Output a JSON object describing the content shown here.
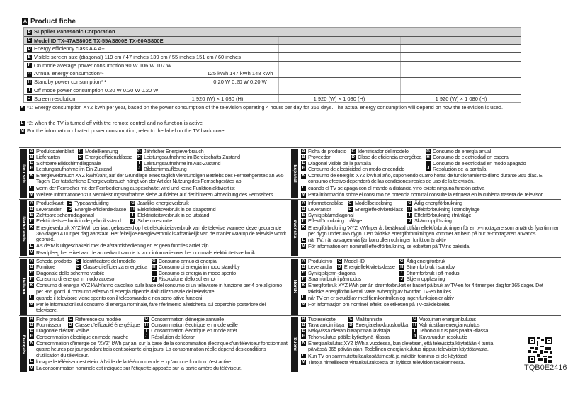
{
  "fiche": {
    "title": "Product fiche",
    "rows": [
      {
        "letter": "B",
        "label": "Supplier Panasonic Corporation"
      },
      {
        "letter": "C",
        "label": "Model ID TX-47AS800E TX-55AS800E TX-60AS800E"
      },
      {
        "letter": "D",
        "label": "Energy efficiency class A A A+"
      },
      {
        "letter": "E",
        "label": "Visible screen size (diagonal) 119 cm / 47 inches 139 cm / 55 inches 151 cm / 60 inches"
      },
      {
        "letter": "F",
        "label": "On mode average power consumption 90 W 106 W 107 W"
      },
      {
        "letter": "G",
        "label": "Annual energy consumption*¹",
        "value": "125 kWh 147 kWh 148 kWh"
      },
      {
        "letter": "H",
        "label": "Standby power consumption* ²",
        "value": "0.20 W 0.20 W 0.20 W"
      },
      {
        "letter": "I",
        "label": "Off mode power consumption 0.20 W 0.20 W 0.20 W"
      },
      {
        "letter": "J",
        "label": "Screen resolution",
        "values": [
          "1 920 (W) × 1 080 (H)",
          "1 920 (W) × 1 080 (H)",
          "1 920 (W) × 1 080 (H)"
        ]
      }
    ],
    "notes": [
      {
        "letter": "K",
        "text": "*1: Energy consumption XYZ kWh per year, based on the power consumption of the television operating 4 hours per day for 365 days. The actual energy consumption will depend on how the television is used."
      },
      {
        "letter": "L",
        "text": "*2: when the TV is turned off with the remote control and no function is active"
      },
      {
        "letter": "M",
        "text": "For the information of rated power consumption, refer to the label on the TV back cover."
      }
    ]
  },
  "languages": [
    {
      "name": "Deutsch",
      "A": "Produktdatenblatt",
      "B": "Lieferanten",
      "C": "Modellkennung",
      "D": "Energieeffizienzklasse",
      "E": "Sichtbare Bildschirmdiagonale",
      "F": "Leistungsaufnahme im Ein-Zustand",
      "G": "Jährlicher Energieverbrauch",
      "H": "Leistungsaufnahme im Bereitschafts-Zustand",
      "I": "Leistungsaufnahme im Aus-Zustand",
      "J": "Bildschirmauflösung",
      "K": "Energieverbrauch XYZ kWh/Jahr, auf der Grundlage eines täglich vierstündigen Betriebs des Fernsehgerätes an 365 Tagen. Der tatsächliche Energieverbrauch hängt von der Art der Nutzung des Fernsehgerätes ab.",
      "L": "wenn der Fernseher mit der Fernbedienung ausgeschaltet wird und keine Funktion aktiviert ist",
      "M": "Weitere Informationen zur Nennleistungsaufnahme siehe Aufkleber auf der hinteren Abdeckung des Fernsehers."
    },
    {
      "name": "Nederlands",
      "A": "Productkaart",
      "B": "Leverancier",
      "C": "Typeaanduiding",
      "D": "Energie-efficiëntieklasse",
      "E": "Zichtbare schermdiagonaal",
      "F": "Elektriciteitsverbruik in de gebruiksstand",
      "G": "Jaarlijks energieverbruik",
      "H": "Elektriciteitsverbruik in de slaapstand",
      "I": "Elektriciteitsverbruik in de uitstand",
      "J": "Schermresolutie",
      "K": "Energieverbruik XYZ kWh per jaar, gebaseerd op het elektriciteitsverbruik van de televisie wanneer deze gedurende 365 dagen 4 uur per dag aanstaat. Het feitelijke energieverbruik is afhankelijk van de manier waarop de televisie wordt gebruikt.",
      "L": "Als de tv is uitgeschakeld met de afstandsbediening en er geen functies actief zijn",
      "M": "Raadpleeg het etiket aan de achterkant van de tv voor informatie over het nominale elektriciteitsverbruik."
    },
    {
      "name": "Italiano",
      "A": "Scheda prodotto",
      "B": "Fornitore",
      "C": "Identificatore del modello",
      "D": "Classe di efficienza energetica",
      "E": "Diagonale dello schermo visibile",
      "F": "Consumo di energia in modo acceso",
      "G": "Consumo annuo di energia",
      "H": "Consumo di energia in modo stand-by",
      "I": "Consumo di energia in modo spento",
      "J": "Risoluzione dello schermo",
      "K": "Consumo di energia XYZ kWh/anno calcolato sulla base del consumo di un televisore in funzione per 4 ore al giorno per 365 giorni. Il consumo effettivo di energia dipende dall'utilizzo reale del televisore.",
      "L": "quando il televisore viene spento con il telecomando e non sono attive funzioni",
      "M": "Per le informazioni sul consumo di energia nominale, fare riferimento all'etichetta sul coperchio posteriore del televisore."
    },
    {
      "name": "Français",
      "A": "Fiche produit",
      "B": "Fournisseur",
      "C": "Référence du modèle",
      "D": "Classe d'efficacité énergétique",
      "E": "Diagonale d'écran visible",
      "F": "Consommation électrique en mode marche",
      "G": "Consommation d'énergie annuelle",
      "H": "Consommation électrique en mode veille",
      "I": "Consommation électrique en mode arrêt",
      "J": "Résolution de l'écran",
      "K": "Consommation d'énergie de \"XYZ\" kWh par an, sur la base de la consommation électrique d'un téléviseur fonctionnant quatre heures par jour pendant trois cent soixante-cinq jours. La consommation réelle dépend des conditions d'utilisation du téléviseur.",
      "L": "lorsque le téléviseur est éteint à l'aide de la télécommande et qu'aucune fonction n'est active.",
      "M": "La consommation nominale est indiquée sur l'étiquette apposée sur la partie arrière du téléviseur."
    },
    {
      "name": "Español",
      "A": "Ficha de producto",
      "B": "Proveedor",
      "C": "Identificador del modelo",
      "D": "Clase de eficiencia energética",
      "E": "Diagonal visible de la pantalla",
      "F": "Consumo de electricidad en modo encendido",
      "G": "Consumo de energía anual",
      "H": "Consumo de electricidad en espera",
      "I": "Consumo de electricidad en modo apagado",
      "J": "Resolución de la pantalla",
      "K": "Consumo de energía: XYZ kWh al año, suponiendo cuatro horas de funcionamiento diario durante 365 días. El consumo efectivo dependerá de las condiciones reales de uso de la televisión.",
      "L": "cuando el TV se apaga con el mando a distancia y no existe ninguna función activa",
      "M": "Para información sobre el consumo de potencia nominal consulte la etiqueta en la cubierta trasera del televisor."
    },
    {
      "name": "Svenska",
      "A": "Informationsblad",
      "B": "Leverantör",
      "C": "Modellbeteckning",
      "D": "Energieffektivitetsklass",
      "E": "Synlig skärmdiagonal",
      "F": "Effektförbrukning i påläge",
      "G": "Årlig energiförbrukning",
      "H": "Effektförbrukning i standbyläge",
      "I": "Effektförbrukning i frånläge",
      "J": "Skärmupplösning",
      "K": "Energiförbrukning 'XYZ' kWh per år, beräknad utifrån effektförbrukningen för en tv-mottagare som används fyra timmar per dygn under 365 dygn. Den faktiska energiförbrukningen kommer att bero på hur tv-mottagaren används.",
      "L": "när TV:n är avslagen via fjärrkontrollen och ingen funktion är aktiv",
      "M": "För information om nominell effektförbrukning, se etiketten på TV:ns baksida."
    },
    {
      "name": "Norsk",
      "A": "Produktinfo",
      "B": "Leverandør",
      "C": "Modell-ID",
      "D": "Energieffektivitetsklasse",
      "E": "Synlig skjerm-diagonal",
      "F": "Strømforbruk i på-modus",
      "G": "Årlig energiforbruk",
      "H": "Strømforbruk i standby",
      "I": "Strømforbruk i off-modus",
      "J": "Skjermoppløsning",
      "K": "Energiforbruk XYZ kWh per år, strømforbruket er basert på bruk av TV-en for 4 timer per dag for 365 dager. Det faktiske energiforbruket vil være avhengig av hvordan TV-en brukes.",
      "L": "når TV-en er skrudd av med fjernkontrollen og ingen funksjon er aktiv",
      "M": "For informasjon om nominell effekt, se etiketten på TV-bakdekselet."
    },
    {
      "name": "Suomi",
      "A": "Tuoteseloste",
      "B": "Tavarantoimittaja",
      "C": "Mallitunniste",
      "D": "Energiatehokkuusluokka",
      "E": "Näkyvissä olevan kuvapinnan lävistäjä",
      "F": "Tehonkulutus päälle kytkettynä -tilassa",
      "G": "Vuotuinen energiankulutus",
      "H": "Valmiustilan energiankulutus",
      "I": "Tehonkulutus pois päältä -tilassa",
      "J": "Kuvaruudun resoluutio",
      "K": "Energiankulutus XYZ kWh:a vuodessa, kun oletetaan, että televisiota käytetään 4 tuntia päivässä 365 päivän ajan. Todellinen energiankulutus riippuu television käyttötavasta.",
      "L": "Kun TV on sammutettu kaukosäätimestä ja mikään toiminto ei ole käytössä",
      "M": "Tietoja nimellisestä virrankulutuksesta on kyltissä television takakannessa."
    }
  ],
  "document_code": "TQB0E2416"
}
